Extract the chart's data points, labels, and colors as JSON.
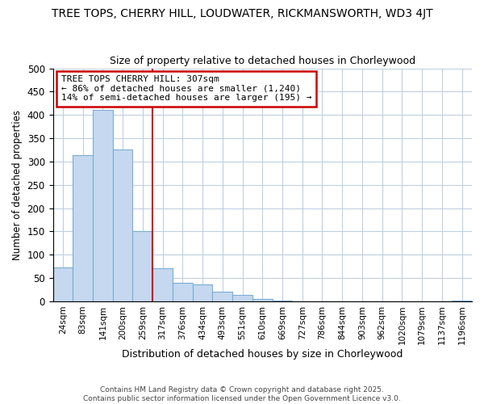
{
  "title": "TREE TOPS, CHERRY HILL, LOUDWATER, RICKMANSWORTH, WD3 4JT",
  "subtitle": "Size of property relative to detached houses in Chorleywood",
  "xlabel": "Distribution of detached houses by size in Chorleywood",
  "ylabel": "Number of detached properties",
  "footer_line1": "Contains HM Land Registry data © Crown copyright and database right 2025.",
  "footer_line2": "Contains public sector information licensed under the Open Government Licence v3.0.",
  "annotation_title": "TREE TOPS CHERRY HILL: 307sqm",
  "annotation_line1": "← 86% of detached houses are smaller (1,240)",
  "annotation_line2": "14% of semi-detached houses are larger (195) →",
  "bar_color": "#c5d8f0",
  "bar_edge_color": "#7aadd4",
  "vline_color": "#cc0000",
  "annotation_box_color": "#cc0000",
  "background_color": "#ffffff",
  "grid_color": "#c0cfe0",
  "categories": [
    "24sqm",
    "83sqm",
    "141sqm",
    "200sqm",
    "259sqm",
    "317sqm",
    "376sqm",
    "434sqm",
    "493sqm",
    "551sqm",
    "610sqm",
    "669sqm",
    "727sqm",
    "786sqm",
    "844sqm",
    "903sqm",
    "962sqm",
    "1020sqm",
    "1079sqm",
    "1137sqm",
    "1196sqm"
  ],
  "values": [
    72,
    313,
    410,
    325,
    150,
    70,
    40,
    36,
    20,
    13,
    5,
    2,
    0,
    0,
    0,
    0,
    0,
    0,
    0,
    0,
    2
  ],
  "ylim": [
    0,
    500
  ],
  "yticks": [
    0,
    50,
    100,
    150,
    200,
    250,
    300,
    350,
    400,
    450,
    500
  ],
  "vline_index": 5,
  "figsize": [
    6.0,
    5.0
  ],
  "dpi": 100
}
